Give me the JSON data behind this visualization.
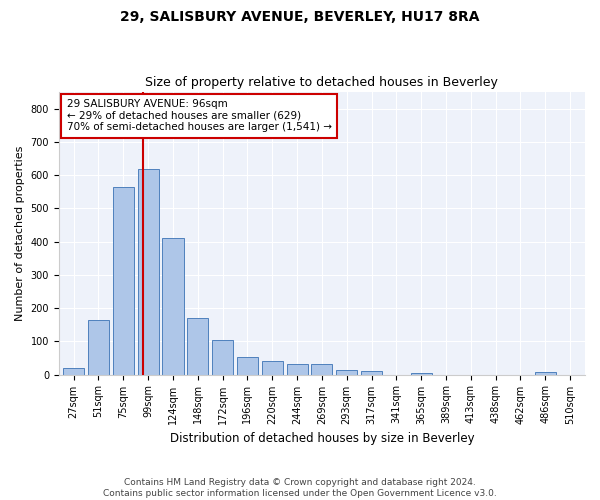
{
  "title1": "29, SALISBURY AVENUE, BEVERLEY, HU17 8RA",
  "title2": "Size of property relative to detached houses in Beverley",
  "xlabel": "Distribution of detached houses by size in Beverley",
  "ylabel": "Number of detached properties",
  "categories": [
    "27sqm",
    "51sqm",
    "75sqm",
    "99sqm",
    "124sqm",
    "148sqm",
    "172sqm",
    "196sqm",
    "220sqm",
    "244sqm",
    "269sqm",
    "293sqm",
    "317sqm",
    "341sqm",
    "365sqm",
    "389sqm",
    "413sqm",
    "438sqm",
    "462sqm",
    "486sqm",
    "510sqm"
  ],
  "values": [
    20,
    163,
    565,
    617,
    412,
    170,
    103,
    52,
    40,
    32,
    32,
    15,
    10,
    0,
    6,
    0,
    0,
    0,
    0,
    7,
    0
  ],
  "bar_color": "#aec6e8",
  "bar_edge_color": "#4f81bd",
  "vline_color": "#cc0000",
  "annotation_text": "29 SALISBURY AVENUE: 96sqm\n← 29% of detached houses are smaller (629)\n70% of semi-detached houses are larger (1,541) →",
  "annotation_box_color": "#ffffff",
  "annotation_box_edge": "#cc0000",
  "ylim": [
    0,
    850
  ],
  "yticks": [
    0,
    100,
    200,
    300,
    400,
    500,
    600,
    700,
    800
  ],
  "bg_color": "#eef2fa",
  "footer_text": "Contains HM Land Registry data © Crown copyright and database right 2024.\nContains public sector information licensed under the Open Government Licence v3.0.",
  "title1_fontsize": 10,
  "title2_fontsize": 9,
  "xlabel_fontsize": 8.5,
  "ylabel_fontsize": 8,
  "tick_fontsize": 7,
  "annotation_fontsize": 7.5,
  "footer_fontsize": 6.5
}
